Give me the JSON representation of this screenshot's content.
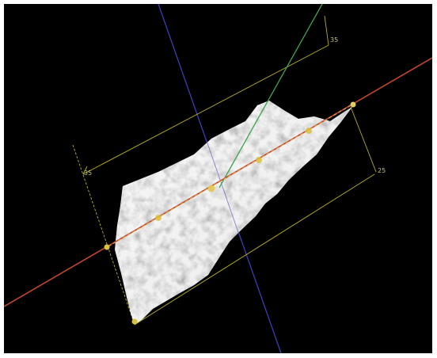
{
  "viewport": {
    "background": "#000000",
    "axes": {
      "x_axis_color": "#c0452e",
      "y_axis_color": "#3c3cb4",
      "z_axis_color": "#3da34a",
      "bbox_color": "#b8b020"
    },
    "bounding_box_labels": [
      "35",
      "35",
      "25"
    ],
    "surface": {
      "type": "rough-terrain-mesh",
      "color": "#a8a8a8"
    }
  }
}
